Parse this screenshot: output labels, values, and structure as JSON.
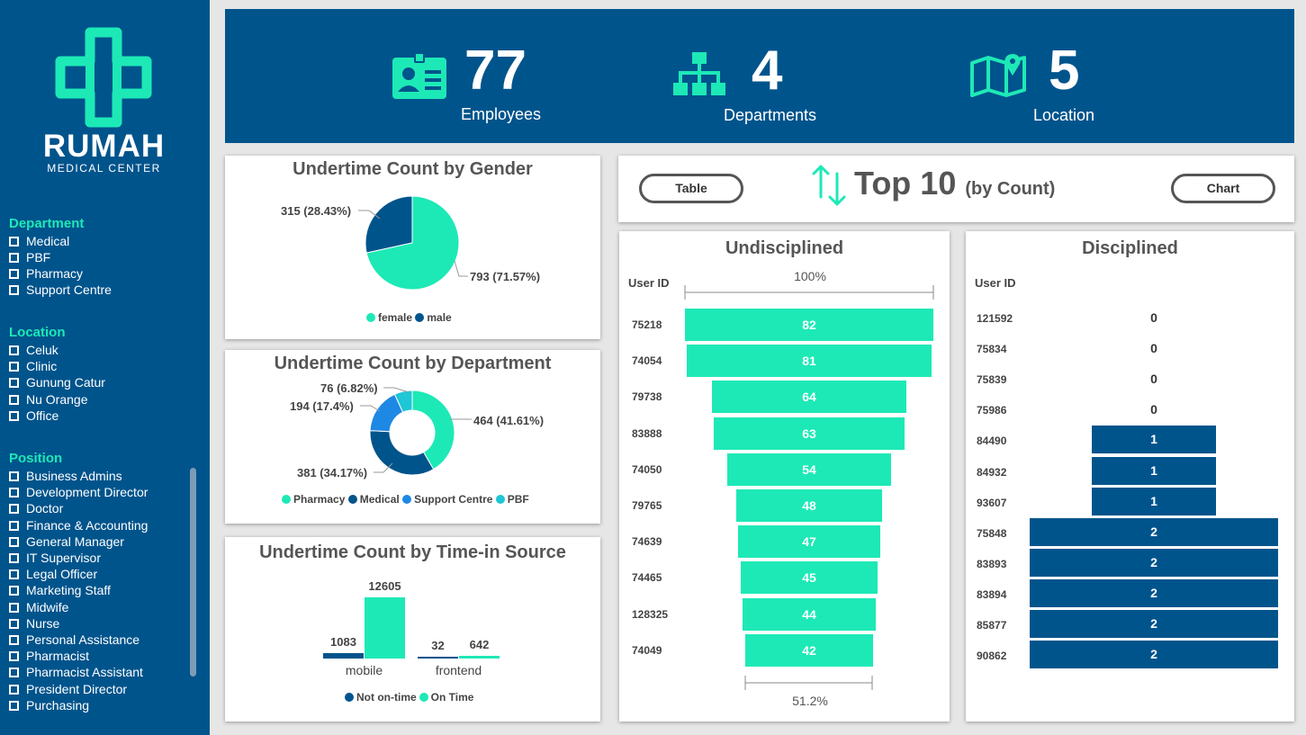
{
  "colors": {
    "navy": "#00548c",
    "teal": "#1de9b6",
    "blue": "#1e88e5",
    "cyan": "#1ec6d6"
  },
  "brand": {
    "name": "RUMAH",
    "subtitle": "MEDICAL CENTER"
  },
  "slicers": {
    "department": {
      "title": "Department",
      "items": [
        "Medical",
        "PBF",
        "Pharmacy",
        "Support Centre"
      ]
    },
    "location": {
      "title": "Location",
      "items": [
        "Celuk",
        "Clinic",
        "Gunung Catur",
        "Nu Orange",
        "Office"
      ]
    },
    "position": {
      "title": "Position",
      "items": [
        "Business Admins",
        "Development Director",
        "Doctor",
        "Finance & Accounting",
        "General Manager",
        "IT Supervisor",
        "Legal Officer",
        "Marketing Staff",
        "Midwife",
        "Nurse",
        "Personal Assistance",
        "Pharmacist",
        "Pharmacist Assistant",
        "President Director",
        "Purchasing"
      ]
    }
  },
  "kpis": [
    {
      "value": "77",
      "label": "Employees",
      "icon": "id-card-icon"
    },
    {
      "value": "4",
      "label": "Departments",
      "icon": "org-chart-icon"
    },
    {
      "value": "5",
      "label": "Location",
      "icon": "map-icon"
    }
  ],
  "gender": {
    "title": "Undertime Count by Gender",
    "labels": [
      "315 (28.43%)",
      "793 (71.57%)"
    ],
    "legend": [
      "female",
      "male"
    ]
  },
  "department": {
    "title": "Undertime Count by Department",
    "labels": [
      "76 (6.82%)",
      "194 (17.4%)",
      "464 (41.61%)",
      "381 (34.17%)"
    ],
    "legend": [
      "Pharmacy",
      "Medical",
      "Support Centre",
      "PBF"
    ]
  },
  "timein": {
    "title": "Undertime Count by Time-in Source",
    "values": [
      "12605",
      "1083",
      "32",
      "642"
    ],
    "categories": [
      "mobile",
      "frontend"
    ],
    "legend": [
      "Not on-time",
      "On Time"
    ]
  },
  "top10": {
    "table_label": "Table",
    "chart_label": "Chart",
    "title": "Top 10",
    "subtitle": "(by Count)"
  },
  "undisciplined": {
    "title": "Undisciplined",
    "header": "User ID",
    "top_pct": "100%",
    "bottom_pct": "51.2%"
  },
  "disciplined": {
    "title": "Disciplined",
    "header": "User ID"
  },
  "chart_data": [
    {
      "type": "pie",
      "title": "Undertime Count by Gender",
      "categories": [
        "female",
        "male"
      ],
      "values": [
        793,
        315
      ],
      "colors": [
        "#1de9b6",
        "#00548c"
      ]
    },
    {
      "type": "pie",
      "title": "Undertime Count by Department",
      "categories": [
        "Pharmacy",
        "Medical",
        "Support Centre",
        "PBF"
      ],
      "values": [
        464,
        381,
        194,
        76
      ],
      "colors": [
        "#1de9b6",
        "#00548c",
        "#1e88e5",
        "#1ec6d6"
      ]
    },
    {
      "type": "bar",
      "title": "Undertime Count by Time-in Source",
      "categories": [
        "mobile",
        "frontend"
      ],
      "series": [
        {
          "name": "Not on-time",
          "values": [
            1083,
            32
          ],
          "color": "#00548c"
        },
        {
          "name": "On Time",
          "values": [
            12605,
            642
          ],
          "color": "#1de9b6"
        }
      ]
    },
    {
      "type": "bar",
      "title": "Undisciplined",
      "categories": [
        "75218",
        "74054",
        "79738",
        "83888",
        "74050",
        "79765",
        "74639",
        "74465",
        "128325",
        "74049"
      ],
      "values": [
        82,
        81,
        64,
        63,
        54,
        48,
        47,
        45,
        44,
        42
      ]
    },
    {
      "type": "bar",
      "title": "Disciplined",
      "categories": [
        "121592",
        "75834",
        "75839",
        "75986",
        "84490",
        "84932",
        "93607",
        "75848",
        "83893",
        "83894",
        "85877",
        "90862"
      ],
      "values": [
        0,
        0,
        0,
        0,
        1,
        1,
        1,
        2,
        2,
        2,
        2,
        2
      ]
    }
  ]
}
